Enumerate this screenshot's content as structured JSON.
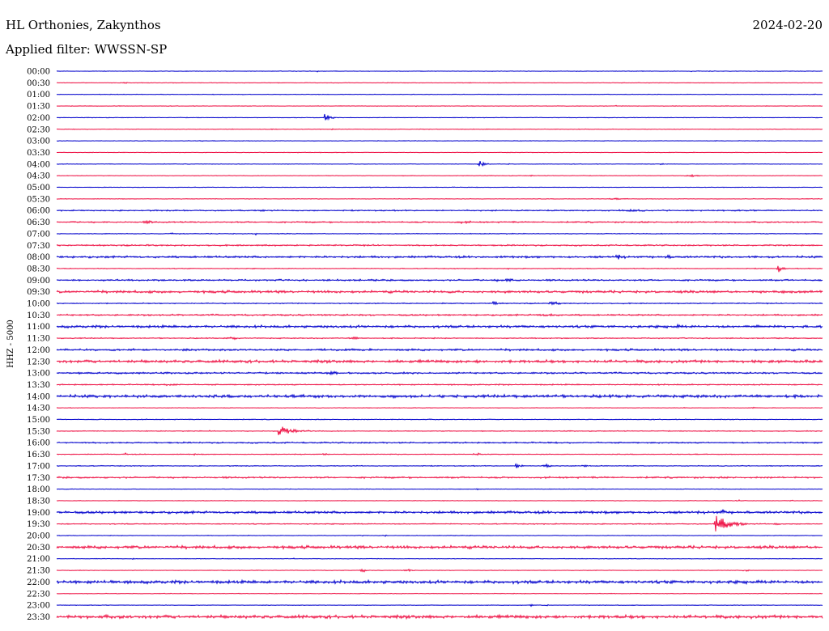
{
  "header": {
    "station": "HL Orthonies, Zakynthos",
    "date": "2024-02-20",
    "filter": "Applied filter: WWSSN-SP"
  },
  "chart_data": {
    "type": "line",
    "title": "HL Orthonies, Zakynthos",
    "subtitle": "Applied filter: WWSSN-SP",
    "date": "2024-02-20",
    "ylabel": "HHZ - 5000",
    "xlabel": "",
    "grid": false,
    "legend": "none",
    "series_colors": [
      "#0000cc",
      "#ee1144"
    ],
    "row_minutes": 30,
    "rows": [
      {
        "label": "00:00",
        "noise": 0.3,
        "events": [
          [
            0.34,
            0.8,
            4,
            1
          ],
          [
            0.83,
            0.8,
            4,
            1
          ]
        ]
      },
      {
        "label": "00:30",
        "noise": 0.3,
        "events": [
          [
            0.09,
            1.0,
            6,
            1
          ],
          [
            0.54,
            0.6,
            3,
            1
          ]
        ]
      },
      {
        "label": "01:00",
        "noise": 0.3,
        "events": [
          [
            0.99,
            1.0,
            4,
            1
          ]
        ]
      },
      {
        "label": "01:30",
        "noise": 0.3,
        "events": [
          [
            0.47,
            0.5,
            3,
            1
          ],
          [
            0.73,
            0.5,
            3,
            1
          ]
        ]
      },
      {
        "label": "02:00",
        "noise": 0.3,
        "events": [
          [
            0.35,
            4.0,
            14,
            2
          ]
        ]
      },
      {
        "label": "02:30",
        "noise": 0.3,
        "events": [
          [
            0.23,
            0.6,
            4,
            1
          ],
          [
            0.28,
            0.8,
            16,
            1
          ],
          [
            0.36,
            0.6,
            3,
            1
          ]
        ]
      },
      {
        "label": "03:00",
        "noise": 0.3,
        "events": [
          [
            0.19,
            0.8,
            8,
            1
          ]
        ]
      },
      {
        "label": "03:30",
        "noise": 0.3,
        "events": []
      },
      {
        "label": "04:00",
        "noise": 0.3,
        "events": [
          [
            0.55,
            5.0,
            14,
            2
          ],
          [
            0.59,
            0.5,
            4,
            1
          ],
          [
            0.79,
            0.8,
            6,
            1
          ]
        ]
      },
      {
        "label": "04:30",
        "noise": 0.3,
        "events": [
          [
            0.62,
            0.6,
            6,
            1
          ],
          [
            0.83,
            1.2,
            20,
            1
          ]
        ]
      },
      {
        "label": "05:00",
        "noise": 0.3,
        "events": [
          [
            0.41,
            0.6,
            3,
            1
          ]
        ]
      },
      {
        "label": "05:30",
        "noise": 0.3,
        "events": [
          [
            0.51,
            0.5,
            4,
            1
          ],
          [
            0.73,
            0.5,
            30,
            1
          ]
        ]
      },
      {
        "label": "06:00",
        "noise": 0.6,
        "events": [
          [
            0.27,
            0.8,
            10,
            1
          ],
          [
            0.41,
            0.6,
            8,
            1
          ],
          [
            0.75,
            0.8,
            40,
            1
          ]
        ]
      },
      {
        "label": "06:30",
        "noise": 0.7,
        "events": [
          [
            0.12,
            1.0,
            18,
            1
          ],
          [
            0.53,
            0.7,
            30,
            1
          ]
        ]
      },
      {
        "label": "07:00",
        "noise": 0.4,
        "events": [
          [
            0.15,
            1.5,
            3,
            1
          ],
          [
            0.26,
            1.5,
            3,
            1
          ]
        ]
      },
      {
        "label": "07:30",
        "noise": 0.7,
        "events": []
      },
      {
        "label": "08:00",
        "noise": 1.0,
        "events": [
          [
            0.73,
            2.5,
            12,
            2
          ],
          [
            0.8,
            1.0,
            20,
            1
          ]
        ]
      },
      {
        "label": "08:30",
        "noise": 0.4,
        "events": [
          [
            0.94,
            5.0,
            12,
            2
          ],
          [
            0.59,
            0.6,
            3,
            1
          ]
        ]
      },
      {
        "label": "09:00",
        "noise": 0.8,
        "events": [
          [
            0.59,
            1.0,
            40,
            1
          ]
        ]
      },
      {
        "label": "09:30",
        "noise": 1.2,
        "events": []
      },
      {
        "label": "10:00",
        "noise": 0.5,
        "events": [
          [
            0.57,
            2.0,
            10,
            2
          ],
          [
            0.65,
            1.5,
            20,
            1
          ],
          [
            0.22,
            1.0,
            3,
            1
          ]
        ]
      },
      {
        "label": "10:30",
        "noise": 0.8,
        "events": [
          [
            0.64,
            1.0,
            30,
            1
          ]
        ]
      },
      {
        "label": "11:00",
        "noise": 1.2,
        "events": [
          [
            0.81,
            1.5,
            6,
            1
          ]
        ]
      },
      {
        "label": "11:30",
        "noise": 0.5,
        "events": [
          [
            0.23,
            2.0,
            16,
            1
          ],
          [
            0.39,
            1.0,
            20,
            1
          ],
          [
            0.57,
            0.6,
            3,
            1
          ]
        ]
      },
      {
        "label": "12:00",
        "noise": 1.0,
        "events": []
      },
      {
        "label": "12:30",
        "noise": 1.4,
        "events": [
          [
            0.55,
            0.8,
            4,
            1
          ]
        ]
      },
      {
        "label": "13:00",
        "noise": 0.8,
        "events": [
          [
            0.36,
            1.5,
            16,
            1
          ],
          [
            0.08,
            0.8,
            10,
            1
          ]
        ]
      },
      {
        "label": "13:30",
        "noise": 0.6,
        "events": [
          [
            0.15,
            0.8,
            24,
            1
          ]
        ]
      },
      {
        "label": "14:00",
        "noise": 1.4,
        "events": []
      },
      {
        "label": "14:30",
        "noise": 0.3,
        "events": [
          [
            0.66,
            0.6,
            3,
            1
          ],
          [
            0.82,
            0.6,
            3,
            1
          ],
          [
            0.91,
            0.8,
            4,
            1
          ]
        ]
      },
      {
        "label": "15:00",
        "noise": 0.4,
        "events": [
          [
            0.37,
            0.6,
            3,
            1
          ],
          [
            0.45,
            0.6,
            3,
            1
          ]
        ]
      },
      {
        "label": "15:30",
        "noise": 0.4,
        "events": [
          [
            0.29,
            6.0,
            40,
            2
          ],
          [
            0.2,
            0.6,
            4,
            1
          ]
        ]
      },
      {
        "label": "16:00",
        "noise": 0.7,
        "events": []
      },
      {
        "label": "16:30",
        "noise": 0.4,
        "events": [
          [
            0.09,
            1.2,
            6,
            1
          ],
          [
            0.18,
            1.0,
            4,
            1
          ],
          [
            0.35,
            1.2,
            6,
            1
          ],
          [
            0.55,
            1.0,
            16,
            1
          ]
        ]
      },
      {
        "label": "17:00",
        "noise": 0.4,
        "events": [
          [
            0.6,
            2.5,
            12,
            2
          ],
          [
            0.64,
            1.5,
            16,
            1
          ],
          [
            0.69,
            1.0,
            10,
            1
          ]
        ]
      },
      {
        "label": "17:30",
        "noise": 0.8,
        "events": []
      },
      {
        "label": "18:00",
        "noise": 0.3,
        "events": [
          [
            0.55,
            1.0,
            4,
            1
          ]
        ]
      },
      {
        "label": "18:30",
        "noise": 0.3,
        "events": [
          [
            0.89,
            1.2,
            6,
            1
          ],
          [
            0.96,
            1.0,
            3,
            1
          ]
        ]
      },
      {
        "label": "19:00",
        "noise": 1.2,
        "events": [
          [
            0.87,
            3.0,
            6,
            1
          ]
        ]
      },
      {
        "label": "19:30",
        "noise": 0.5,
        "events": [
          [
            0.86,
            11.0,
            40,
            2
          ],
          [
            0.94,
            1.0,
            10,
            1
          ]
        ]
      },
      {
        "label": "20:00",
        "noise": 0.3,
        "events": [
          [
            0.43,
            0.8,
            4,
            1
          ],
          [
            0.25,
            0.6,
            3,
            1
          ],
          [
            0.4,
            0.5,
            3,
            1
          ]
        ]
      },
      {
        "label": "20:30",
        "noise": 1.4,
        "events": []
      },
      {
        "label": "21:00",
        "noise": 0.3,
        "events": [
          [
            0.31,
            1.0,
            3,
            1
          ],
          [
            0.1,
            0.6,
            3,
            1
          ]
        ]
      },
      {
        "label": "21:30",
        "noise": 0.3,
        "events": [
          [
            0.4,
            2.0,
            8,
            1
          ],
          [
            0.46,
            1.0,
            16,
            1
          ],
          [
            0.9,
            1.0,
            12,
            1
          ]
        ]
      },
      {
        "label": "22:00",
        "noise": 1.5,
        "events": []
      },
      {
        "label": "22:30",
        "noise": 0.3,
        "events": []
      },
      {
        "label": "23:00",
        "noise": 0.3,
        "events": [
          [
            0.62,
            1.2,
            6,
            1
          ],
          [
            0.64,
            0.8,
            4,
            1
          ]
        ]
      },
      {
        "label": "23:30",
        "noise": 1.6,
        "events": []
      }
    ]
  }
}
